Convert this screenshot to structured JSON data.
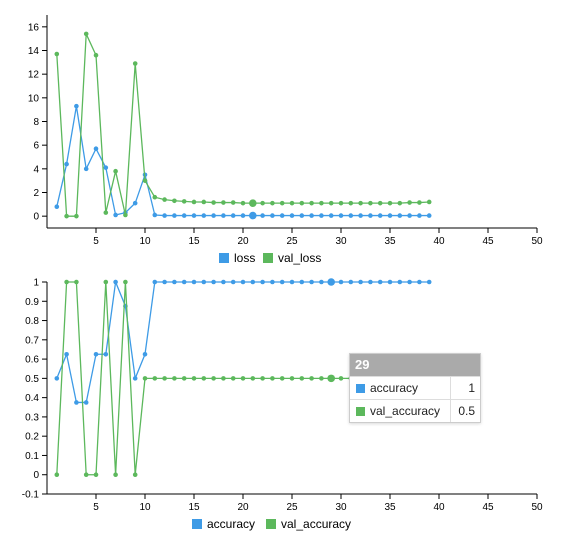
{
  "colors": {
    "loss": "#3e9be6",
    "val_loss": "#5cb85c"
  },
  "chart_data": [
    {
      "type": "line",
      "x": [
        1,
        2,
        3,
        4,
        5,
        6,
        7,
        8,
        9,
        10,
        11,
        12,
        13,
        14,
        15,
        16,
        17,
        18,
        19,
        20,
        21,
        22,
        23,
        24,
        25,
        26,
        27,
        28,
        29,
        30,
        31,
        32,
        33,
        34,
        35,
        36,
        37,
        38,
        39
      ],
      "series": [
        {
          "name": "loss",
          "values": [
            0.8,
            4.4,
            9.3,
            4.0,
            5.7,
            4.1,
            0.1,
            0.3,
            1.1,
            3.5,
            0.1,
            0.05,
            0.05,
            0.05,
            0.05,
            0.05,
            0.05,
            0.05,
            0.05,
            0.05,
            0.05,
            0.05,
            0.05,
            0.05,
            0.05,
            0.05,
            0.05,
            0.05,
            0.05,
            0.05,
            0.05,
            0.05,
            0.05,
            0.05,
            0.05,
            0.05,
            0.05,
            0.05,
            0.05
          ]
        },
        {
          "name": "val_loss",
          "values": [
            13.7,
            0.0,
            0.0,
            15.4,
            13.6,
            0.3,
            3.8,
            0.1,
            12.9,
            3.0,
            1.6,
            1.4,
            1.3,
            1.25,
            1.2,
            1.2,
            1.15,
            1.15,
            1.15,
            1.1,
            1.1,
            1.1,
            1.1,
            1.1,
            1.1,
            1.1,
            1.1,
            1.1,
            1.1,
            1.1,
            1.1,
            1.1,
            1.1,
            1.1,
            1.1,
            1.1,
            1.15,
            1.15,
            1.2
          ]
        }
      ],
      "xlim": [
        0,
        50
      ],
      "ylim": [
        -1,
        17
      ],
      "xticks": [
        "5",
        "10",
        "15",
        "20",
        "25",
        "30",
        "35",
        "40",
        "45",
        "50"
      ],
      "yticks": [
        "0",
        "2",
        "4",
        "6",
        "8",
        "10",
        "12",
        "14",
        "16"
      ],
      "highlight_index": 20,
      "legend": [
        "loss",
        "val_loss"
      ],
      "legend_position": "bottom"
    },
    {
      "type": "line",
      "x": [
        1,
        2,
        3,
        4,
        5,
        6,
        7,
        8,
        9,
        10,
        11,
        12,
        13,
        14,
        15,
        16,
        17,
        18,
        19,
        20,
        21,
        22,
        23,
        24,
        25,
        26,
        27,
        28,
        29,
        30,
        31,
        32,
        33,
        34,
        35,
        36,
        37,
        38,
        39
      ],
      "series": [
        {
          "name": "accuracy",
          "values": [
            0.5,
            0.625,
            0.375,
            0.375,
            0.625,
            0.625,
            1,
            0.875,
            0.5,
            0.625,
            1,
            1,
            1,
            1,
            1,
            1,
            1,
            1,
            1,
            1,
            1,
            1,
            1,
            1,
            1,
            1,
            1,
            1,
            1,
            1,
            1,
            1,
            1,
            1,
            1,
            1,
            1,
            1,
            1
          ]
        },
        {
          "name": "val_accuracy",
          "values": [
            0,
            1,
            1,
            0,
            0,
            1,
            0,
            1,
            0,
            0.5,
            0.5,
            0.5,
            0.5,
            0.5,
            0.5,
            0.5,
            0.5,
            0.5,
            0.5,
            0.5,
            0.5,
            0.5,
            0.5,
            0.5,
            0.5,
            0.5,
            0.5,
            0.5,
            0.5,
            0.5,
            0.5,
            0.5,
            0.5,
            0.5,
            0.5,
            0.5,
            0.5,
            0.5,
            0.5
          ]
        }
      ],
      "xlim": [
        0,
        50
      ],
      "ylim": [
        -0.1,
        1
      ],
      "xticks": [
        "5",
        "10",
        "15",
        "20",
        "25",
        "30",
        "35",
        "40",
        "45",
        "50"
      ],
      "yticks": [
        "-0.1",
        "0",
        "0.1",
        "0.2",
        "0.3",
        "0.4",
        "0.5",
        "0.6",
        "0.7",
        "0.8",
        "0.9",
        "1"
      ],
      "highlight_index": 28,
      "legend": [
        "accuracy",
        "val_accuracy"
      ],
      "legend_position": "bottom"
    }
  ],
  "tooltip": {
    "title": "29",
    "rows": [
      {
        "name": "accuracy",
        "value": "1"
      },
      {
        "name": "val_accuracy",
        "value": "0.5"
      }
    ]
  }
}
